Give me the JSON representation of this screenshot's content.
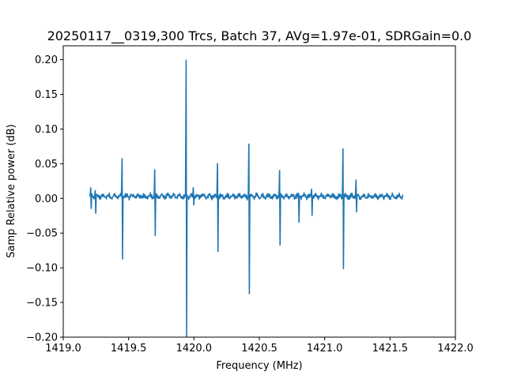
{
  "chart_data": {
    "type": "line",
    "title": "20250117__0319,300 Trcs, Batch 37, AVg=1.97e-01, SDRGain=0.0",
    "xlabel": "Frequency (MHz)",
    "ylabel": "Samp Relative power (dB)",
    "xlim": [
      1419.0,
      1422.0
    ],
    "ylim": [
      -0.2,
      0.22
    ],
    "x_ticks": [
      1419.0,
      1419.5,
      1420.0,
      1420.5,
      1421.0,
      1421.5,
      1422.0
    ],
    "x_tick_labels": [
      "1419.0",
      "1419.5",
      "1420.0",
      "1420.5",
      "1421.0",
      "1421.5",
      "1422.0"
    ],
    "y_ticks": [
      -0.2,
      -0.15,
      -0.1,
      -0.05,
      0.0,
      0.05,
      0.1,
      0.15,
      0.2
    ],
    "y_tick_labels": [
      "−0.20",
      "−0.15",
      "−0.10",
      "−0.05",
      "0.00",
      "0.05",
      "0.10",
      "0.15",
      "0.20"
    ],
    "grid": false,
    "series": [
      {
        "color": "#1f77b4",
        "x_range": [
          1419.2,
          1421.6
        ],
        "baseline": 0.003,
        "noise_band": 0.004,
        "spikes": [
          {
            "x": 1419.21,
            "max": 0.016,
            "min": -0.015
          },
          {
            "x": 1419.245,
            "max": 0.012,
            "min": -0.022
          },
          {
            "x": 1419.45,
            "max": 0.058,
            "min": -0.088
          },
          {
            "x": 1419.7,
            "max": 0.042,
            "min": -0.054
          },
          {
            "x": 1419.94,
            "max": 0.2,
            "min": -0.2
          },
          {
            "x": 1419.995,
            "max": 0.016,
            "min": -0.01
          },
          {
            "x": 1420.18,
            "max": 0.051,
            "min": -0.077
          },
          {
            "x": 1420.42,
            "max": 0.079,
            "min": -0.138
          },
          {
            "x": 1420.655,
            "max": 0.041,
            "min": -0.068
          },
          {
            "x": 1420.8,
            "max": 0.004,
            "min": -0.035
          },
          {
            "x": 1420.9,
            "max": 0.014,
            "min": -0.025
          },
          {
            "x": 1421.14,
            "max": 0.072,
            "min": -0.102
          },
          {
            "x": 1421.24,
            "max": 0.027,
            "min": -0.02
          }
        ]
      }
    ]
  }
}
